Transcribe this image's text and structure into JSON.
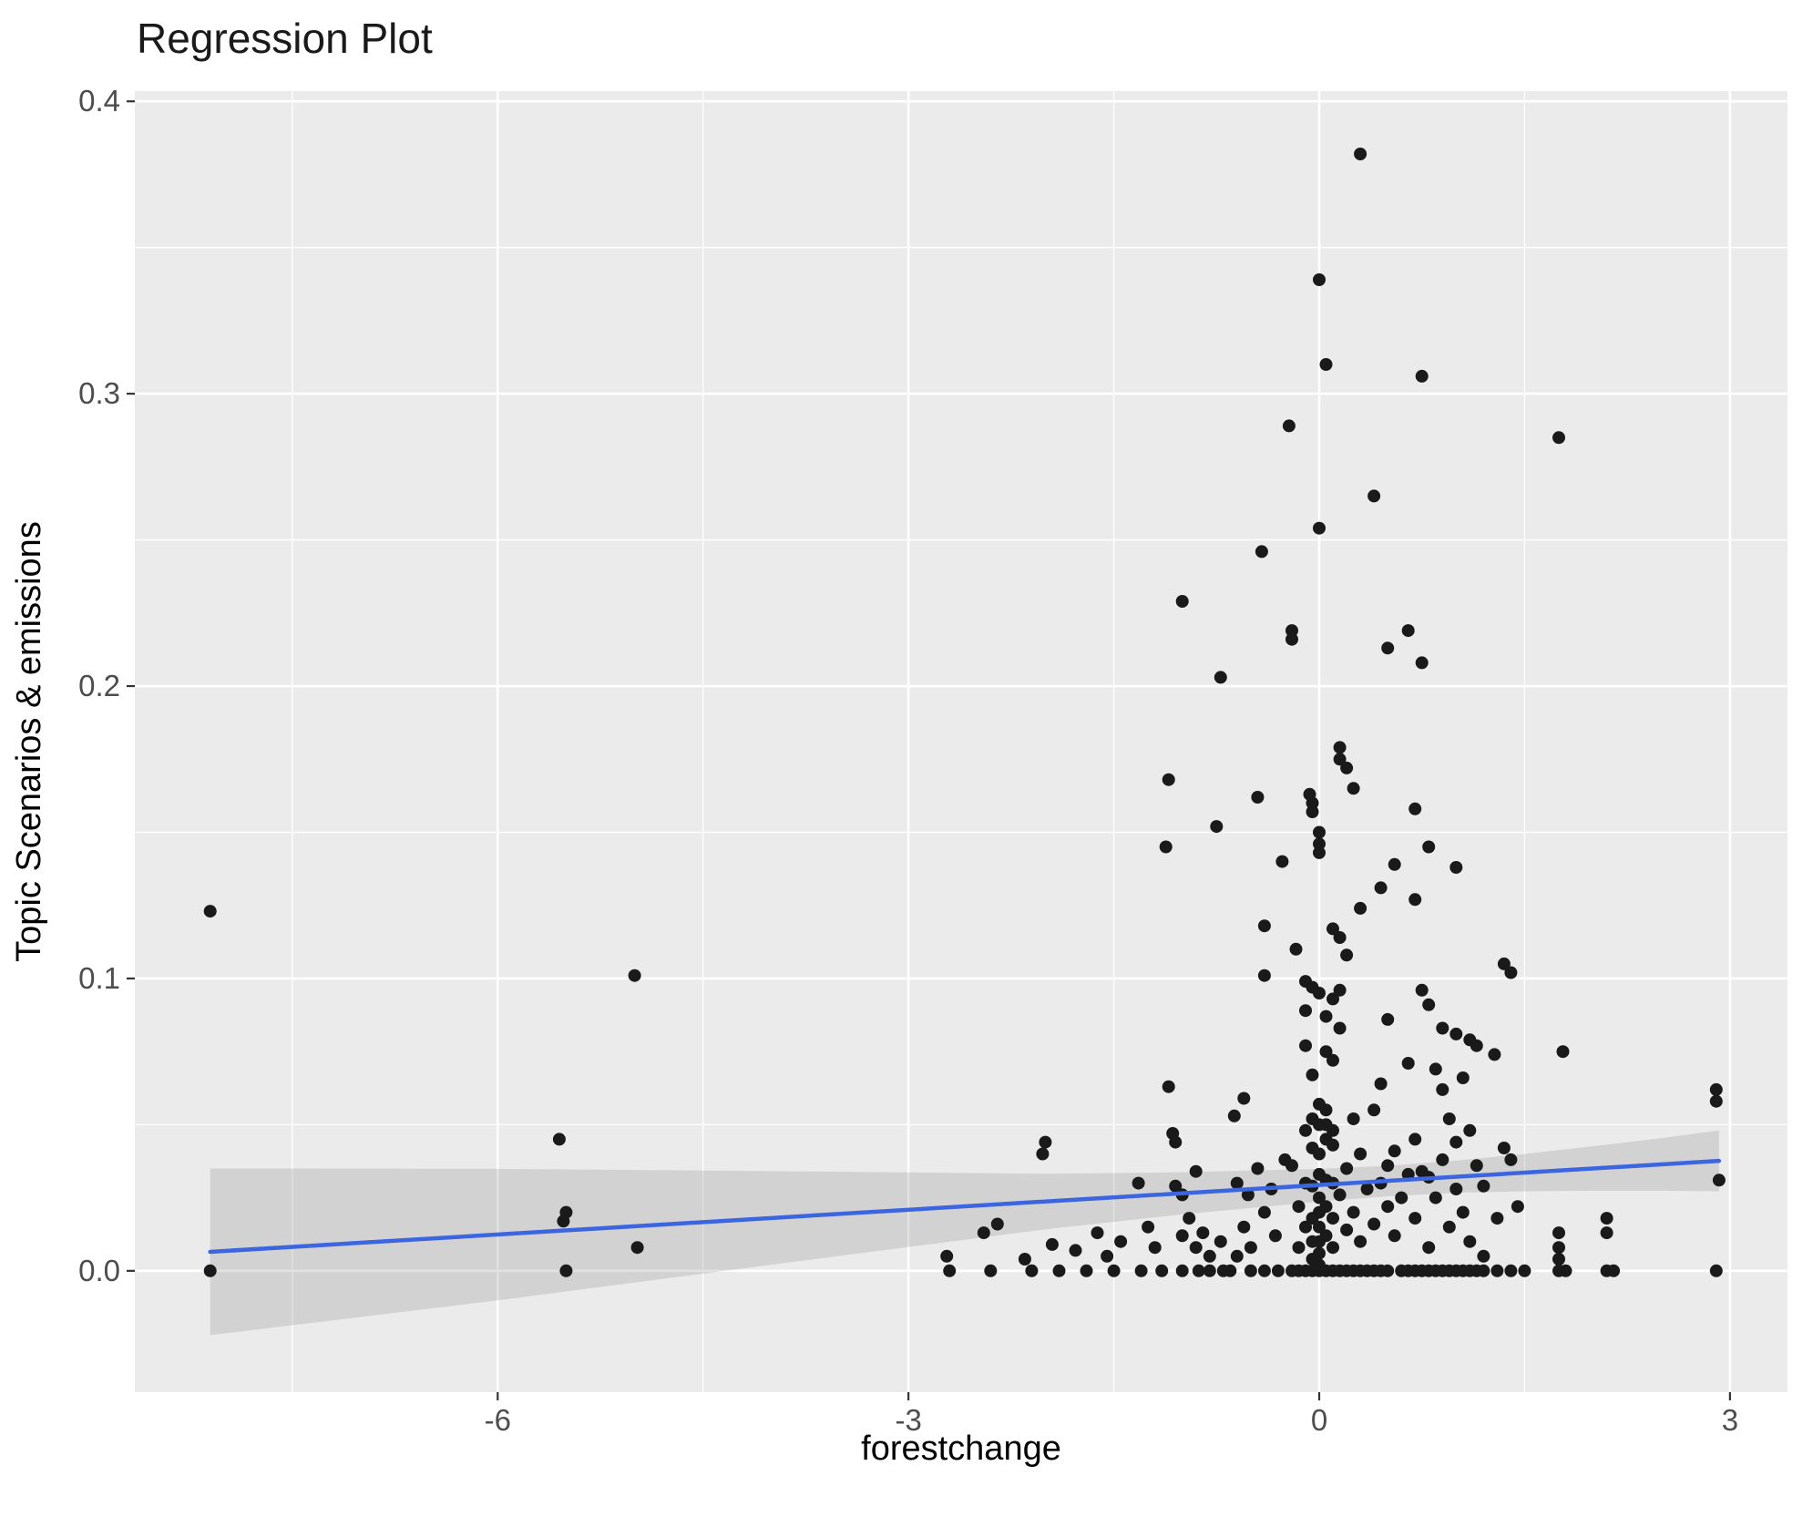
{
  "chart_data": {
    "type": "scatter",
    "title": "Regression Plot",
    "xlabel": "forestchange",
    "ylabel": "Topic Scenarios & emissions",
    "xlim": [
      -8.65,
      3.42
    ],
    "ylim": [
      -0.0415,
      0.4035
    ],
    "x_ticks": [
      -6,
      -3,
      0,
      3
    ],
    "x_tick_labels": [
      "-6",
      "-3",
      "0",
      "3"
    ],
    "y_ticks": [
      0.0,
      0.1,
      0.2,
      0.3,
      0.4
    ],
    "y_tick_labels": [
      "0.0",
      "0.1",
      "0.2",
      "0.3",
      "0.4"
    ],
    "x_minor_ticks": [
      -7.5,
      -4.5,
      -1.5,
      1.5
    ],
    "y_minor_ticks": [
      0.05,
      0.15,
      0.25,
      0.35
    ],
    "grid": true,
    "legend": "none",
    "colors": {
      "panel_bg": "#EBEBEB",
      "grid_major": "#FFFFFF",
      "grid_minor": "#FFFFFF",
      "point": "#1A1A1A",
      "smooth_line": "#3B66E0",
      "confidence_band": "#888888",
      "band_opacity": 0.25,
      "tick": "#333333",
      "tick_label": "#4D4D4D"
    },
    "regression_line": {
      "x": [
        -8.1,
        2.92
      ],
      "y": [
        0.0065,
        0.0376
      ]
    },
    "confidence_band": {
      "x": [
        -8.1,
        -6.0,
        -4.0,
        -2.0,
        -1.0,
        0.0,
        0.5,
        1.0,
        1.5,
        2.0,
        2.5,
        2.92
      ],
      "upper": [
        0.035,
        0.0349,
        0.0341,
        0.0332,
        0.0337,
        0.0349,
        0.0359,
        0.0377,
        0.04,
        0.0426,
        0.0454,
        0.048
      ],
      "lower": [
        -0.022,
        -0.0101,
        0.0021,
        0.0142,
        0.0193,
        0.0237,
        0.0255,
        0.0267,
        0.0272,
        0.0274,
        0.0274,
        0.0272
      ]
    },
    "points": [
      [
        -8.1,
        0.123
      ],
      [
        -8.1,
        0.0
      ],
      [
        -5.55,
        0.045
      ],
      [
        -5.5,
        0.02
      ],
      [
        -5.52,
        0.017
      ],
      [
        -5.5,
        0.0
      ],
      [
        -5.0,
        0.101
      ],
      [
        -4.98,
        0.008
      ],
      [
        -2.72,
        0.005
      ],
      [
        -2.7,
        0.0
      ],
      [
        -2.45,
        0.013
      ],
      [
        -2.4,
        0.0
      ],
      [
        -2.35,
        0.016
      ],
      [
        -2.15,
        0.004
      ],
      [
        -2.1,
        0.0
      ],
      [
        -2.0,
        0.044
      ],
      [
        -2.02,
        0.04
      ],
      [
        -1.95,
        0.009
      ],
      [
        -1.9,
        0.0
      ],
      [
        -1.78,
        0.007
      ],
      [
        -1.7,
        0.0
      ],
      [
        -1.62,
        0.013
      ],
      [
        -1.55,
        0.005
      ],
      [
        -1.5,
        0.0
      ],
      [
        -1.45,
        0.01
      ],
      [
        -1.32,
        0.03
      ],
      [
        -1.3,
        0.0
      ],
      [
        -1.25,
        0.015
      ],
      [
        -1.2,
        0.008
      ],
      [
        -1.15,
        0.0
      ],
      [
        -1.1,
        0.168
      ],
      [
        -1.12,
        0.145
      ],
      [
        -1.1,
        0.063
      ],
      [
        -1.07,
        0.047
      ],
      [
        -1.05,
        0.044
      ],
      [
        -1.05,
        0.029
      ],
      [
        -1.0,
        0.229
      ],
      [
        -1.0,
        0.026
      ],
      [
        -1.0,
        0.012
      ],
      [
        -1.0,
        0.0
      ],
      [
        -0.95,
        0.018
      ],
      [
        -0.9,
        0.034
      ],
      [
        -0.9,
        0.008
      ],
      [
        -0.88,
        0.0
      ],
      [
        -0.85,
        0.013
      ],
      [
        -0.8,
        0.005
      ],
      [
        -0.8,
        0.0
      ],
      [
        -0.75,
        0.152
      ],
      [
        -0.72,
        0.203
      ],
      [
        -0.72,
        0.01
      ],
      [
        -0.7,
        0.0
      ],
      [
        -0.65,
        0.0
      ],
      [
        -0.62,
        0.053
      ],
      [
        -0.6,
        0.03
      ],
      [
        -0.6,
        0.005
      ],
      [
        -0.55,
        0.059
      ],
      [
        -0.55,
        0.015
      ],
      [
        -0.52,
        0.026
      ],
      [
        -0.5,
        0.008
      ],
      [
        -0.5,
        0.0
      ],
      [
        -0.45,
        0.162
      ],
      [
        -0.45,
        0.035
      ],
      [
        -0.42,
        0.246
      ],
      [
        -0.4,
        0.118
      ],
      [
        -0.4,
        0.101
      ],
      [
        -0.4,
        0.02
      ],
      [
        -0.4,
        0.0
      ],
      [
        -0.35,
        0.028
      ],
      [
        -0.32,
        0.012
      ],
      [
        -0.3,
        0.0
      ],
      [
        -0.27,
        0.14
      ],
      [
        -0.25,
        0.038
      ],
      [
        -0.22,
        0.289
      ],
      [
        -0.2,
        0.219
      ],
      [
        -0.2,
        0.216
      ],
      [
        -0.2,
        0.036
      ],
      [
        -0.2,
        0.0
      ],
      [
        -0.17,
        0.11
      ],
      [
        -0.15,
        0.022
      ],
      [
        -0.15,
        0.008
      ],
      [
        -0.15,
        0.0
      ],
      [
        -0.1,
        0.099
      ],
      [
        -0.1,
        0.089
      ],
      [
        -0.1,
        0.077
      ],
      [
        -0.1,
        0.048
      ],
      [
        -0.1,
        0.03
      ],
      [
        -0.1,
        0.015
      ],
      [
        -0.1,
        0.0
      ],
      [
        -0.07,
        0.163
      ],
      [
        -0.05,
        0.16
      ],
      [
        -0.05,
        0.157
      ],
      [
        -0.05,
        0.097
      ],
      [
        -0.05,
        0.067
      ],
      [
        -0.05,
        0.052
      ],
      [
        -0.05,
        0.042
      ],
      [
        -0.05,
        0.029
      ],
      [
        -0.05,
        0.018
      ],
      [
        -0.05,
        0.01
      ],
      [
        -0.05,
        0.004
      ],
      [
        -0.05,
        0.0
      ],
      [
        0.0,
        0.339
      ],
      [
        0.0,
        0.254
      ],
      [
        0.0,
        0.15
      ],
      [
        0.0,
        0.146
      ],
      [
        0.0,
        0.143
      ],
      [
        0.0,
        0.095
      ],
      [
        0.0,
        0.057
      ],
      [
        0.0,
        0.05
      ],
      [
        0.0,
        0.04
      ],
      [
        0.0,
        0.033
      ],
      [
        0.0,
        0.025
      ],
      [
        0.0,
        0.02
      ],
      [
        0.0,
        0.015
      ],
      [
        0.0,
        0.01
      ],
      [
        0.0,
        0.006
      ],
      [
        0.0,
        0.002
      ],
      [
        0.0,
        0.0
      ],
      [
        0.05,
        0.31
      ],
      [
        0.05,
        0.087
      ],
      [
        0.05,
        0.075
      ],
      [
        0.05,
        0.055
      ],
      [
        0.05,
        0.05
      ],
      [
        0.05,
        0.045
      ],
      [
        0.05,
        0.031
      ],
      [
        0.05,
        0.022
      ],
      [
        0.05,
        0.012
      ],
      [
        0.05,
        0.0
      ],
      [
        0.1,
        0.117
      ],
      [
        0.1,
        0.093
      ],
      [
        0.1,
        0.072
      ],
      [
        0.1,
        0.048
      ],
      [
        0.1,
        0.043
      ],
      [
        0.1,
        0.03
      ],
      [
        0.1,
        0.018
      ],
      [
        0.1,
        0.008
      ],
      [
        0.1,
        0.0
      ],
      [
        0.15,
        0.179
      ],
      [
        0.15,
        0.175
      ],
      [
        0.15,
        0.114
      ],
      [
        0.15,
        0.096
      ],
      [
        0.15,
        0.083
      ],
      [
        0.15,
        0.026
      ],
      [
        0.15,
        0.0
      ],
      [
        0.2,
        0.172
      ],
      [
        0.2,
        0.108
      ],
      [
        0.2,
        0.035
      ],
      [
        0.2,
        0.014
      ],
      [
        0.2,
        0.0
      ],
      [
        0.25,
        0.165
      ],
      [
        0.25,
        0.052
      ],
      [
        0.25,
        0.02
      ],
      [
        0.25,
        0.0
      ],
      [
        0.3,
        0.382
      ],
      [
        0.3,
        0.124
      ],
      [
        0.3,
        0.04
      ],
      [
        0.3,
        0.01
      ],
      [
        0.3,
        0.0
      ],
      [
        0.35,
        0.028
      ],
      [
        0.35,
        0.0
      ],
      [
        0.4,
        0.265
      ],
      [
        0.4,
        0.055
      ],
      [
        0.4,
        0.016
      ],
      [
        0.4,
        0.0
      ],
      [
        0.45,
        0.131
      ],
      [
        0.45,
        0.064
      ],
      [
        0.45,
        0.03
      ],
      [
        0.45,
        0.0
      ],
      [
        0.5,
        0.213
      ],
      [
        0.5,
        0.086
      ],
      [
        0.5,
        0.036
      ],
      [
        0.5,
        0.022
      ],
      [
        0.5,
        0.0
      ],
      [
        0.55,
        0.139
      ],
      [
        0.55,
        0.041
      ],
      [
        0.55,
        0.012
      ],
      [
        0.6,
        0.025
      ],
      [
        0.6,
        0.0
      ],
      [
        0.65,
        0.219
      ],
      [
        0.65,
        0.071
      ],
      [
        0.65,
        0.033
      ],
      [
        0.65,
        0.0
      ],
      [
        0.7,
        0.158
      ],
      [
        0.7,
        0.127
      ],
      [
        0.7,
        0.045
      ],
      [
        0.7,
        0.018
      ],
      [
        0.7,
        0.0
      ],
      [
        0.75,
        0.306
      ],
      [
        0.75,
        0.208
      ],
      [
        0.75,
        0.096
      ],
      [
        0.75,
        0.034
      ],
      [
        0.75,
        0.0
      ],
      [
        0.8,
        0.145
      ],
      [
        0.8,
        0.091
      ],
      [
        0.8,
        0.032
      ],
      [
        0.8,
        0.008
      ],
      [
        0.8,
        0.0
      ],
      [
        0.85,
        0.069
      ],
      [
        0.85,
        0.025
      ],
      [
        0.85,
        0.0
      ],
      [
        0.9,
        0.083
      ],
      [
        0.9,
        0.062
      ],
      [
        0.9,
        0.038
      ],
      [
        0.9,
        0.0
      ],
      [
        0.95,
        0.052
      ],
      [
        0.95,
        0.015
      ],
      [
        0.95,
        0.0
      ],
      [
        1.0,
        0.138
      ],
      [
        1.0,
        0.081
      ],
      [
        1.0,
        0.044
      ],
      [
        1.0,
        0.028
      ],
      [
        1.0,
        0.0
      ],
      [
        1.05,
        0.066
      ],
      [
        1.05,
        0.02
      ],
      [
        1.05,
        0.0
      ],
      [
        1.1,
        0.079
      ],
      [
        1.1,
        0.048
      ],
      [
        1.1,
        0.01
      ],
      [
        1.1,
        0.0
      ],
      [
        1.15,
        0.077
      ],
      [
        1.15,
        0.036
      ],
      [
        1.15,
        0.0
      ],
      [
        1.2,
        0.029
      ],
      [
        1.2,
        0.005
      ],
      [
        1.2,
        0.0
      ],
      [
        1.28,
        0.074
      ],
      [
        1.3,
        0.018
      ],
      [
        1.3,
        0.0
      ],
      [
        1.35,
        0.105
      ],
      [
        1.35,
        0.042
      ],
      [
        1.4,
        0.102
      ],
      [
        1.4,
        0.038
      ],
      [
        1.4,
        0.0
      ],
      [
        1.45,
        0.022
      ],
      [
        1.5,
        0.0
      ],
      [
        1.75,
        0.285
      ],
      [
        1.78,
        0.075
      ],
      [
        1.75,
        0.013
      ],
      [
        1.75,
        0.008
      ],
      [
        1.75,
        0.004
      ],
      [
        1.75,
        0.0
      ],
      [
        1.8,
        0.0
      ],
      [
        2.1,
        0.018
      ],
      [
        2.1,
        0.013
      ],
      [
        2.1,
        0.0
      ],
      [
        2.15,
        0.0
      ],
      [
        2.9,
        0.062
      ],
      [
        2.9,
        0.058
      ],
      [
        2.92,
        0.031
      ],
      [
        2.9,
        0.0
      ]
    ]
  }
}
